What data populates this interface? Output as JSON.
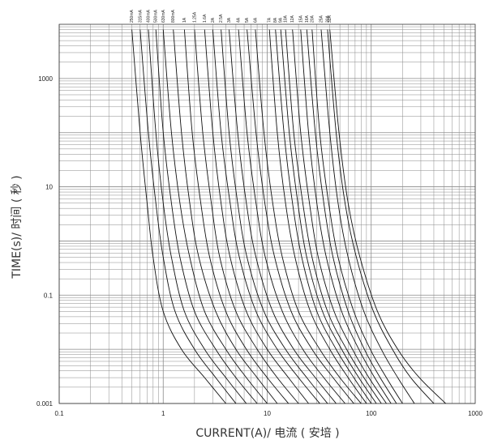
{
  "chart_data": {
    "type": "line",
    "title": "",
    "xlabel": "CURRENT(A)/ 电流 ( 安培 )",
    "ylabel": "TIME(s)/ 时间 ( 秒 )",
    "x_scale": "log",
    "y_scale": "log",
    "xlim": [
      0.1,
      1000
    ],
    "ylim": [
      0.001,
      10000
    ],
    "grid": true,
    "legend": "labels at top of curves",
    "x_tick_labels": [
      "0.1",
      "1",
      "10",
      "100",
      "1000"
    ],
    "y_tick_labels": [
      "0.001",
      "0.1",
      "10",
      "1000"
    ],
    "colors": {
      "line": "#111111",
      "grid": "#8a8a8a",
      "text": "#222222"
    },
    "series": [
      {
        "name": "250mA",
        "points": [
          [
            0.5,
            8000
          ],
          [
            0.6,
            100
          ],
          [
            0.7,
            5
          ],
          [
            0.8,
            0.5
          ],
          [
            1.0,
            0.05
          ],
          [
            1.5,
            0.01
          ],
          [
            2.5,
            0.003
          ],
          [
            4.0,
            0.001
          ]
        ]
      },
      {
        "name": "315mA",
        "points": [
          [
            0.6,
            8000
          ],
          [
            0.72,
            100
          ],
          [
            0.85,
            5
          ],
          [
            1.0,
            0.5
          ],
          [
            1.3,
            0.05
          ],
          [
            2.0,
            0.01
          ],
          [
            3.2,
            0.003
          ],
          [
            5.0,
            0.001
          ]
        ]
      },
      {
        "name": "400mA",
        "points": [
          [
            0.72,
            8000
          ],
          [
            0.85,
            100
          ],
          [
            1.0,
            5
          ],
          [
            1.2,
            0.5
          ],
          [
            1.6,
            0.05
          ],
          [
            2.5,
            0.01
          ],
          [
            4.0,
            0.003
          ],
          [
            6.3,
            0.001
          ]
        ]
      },
      {
        "name": "500mA",
        "points": [
          [
            0.85,
            8000
          ],
          [
            1.0,
            100
          ],
          [
            1.2,
            5
          ],
          [
            1.45,
            0.5
          ],
          [
            2.0,
            0.05
          ],
          [
            3.2,
            0.01
          ],
          [
            5.0,
            0.003
          ],
          [
            8.0,
            0.001
          ]
        ]
      },
      {
        "name": "630mA",
        "points": [
          [
            1.0,
            8000
          ],
          [
            1.2,
            100
          ],
          [
            1.45,
            5
          ],
          [
            1.8,
            0.5
          ],
          [
            2.5,
            0.05
          ],
          [
            4.0,
            0.01
          ],
          [
            6.3,
            0.003
          ],
          [
            10,
            0.001
          ]
        ]
      },
      {
        "name": "800mA",
        "points": [
          [
            1.25,
            8000
          ],
          [
            1.5,
            100
          ],
          [
            1.8,
            5
          ],
          [
            2.2,
            0.5
          ],
          [
            3.2,
            0.05
          ],
          [
            5.0,
            0.01
          ],
          [
            8.0,
            0.003
          ],
          [
            12.5,
            0.001
          ]
        ]
      },
      {
        "name": "1A",
        "points": [
          [
            1.6,
            8000
          ],
          [
            1.9,
            100
          ],
          [
            2.3,
            5
          ],
          [
            2.8,
            0.5
          ],
          [
            4.0,
            0.05
          ],
          [
            6.3,
            0.01
          ],
          [
            10,
            0.003
          ],
          [
            16,
            0.001
          ]
        ]
      },
      {
        "name": "1.25A",
        "points": [
          [
            2.0,
            8000
          ],
          [
            2.4,
            100
          ],
          [
            2.9,
            5
          ],
          [
            3.5,
            0.5
          ],
          [
            5.0,
            0.05
          ],
          [
            8.0,
            0.01
          ],
          [
            12.5,
            0.003
          ],
          [
            20,
            0.001
          ]
        ]
      },
      {
        "name": "1.6A",
        "points": [
          [
            2.5,
            8000
          ],
          [
            3.0,
            100
          ],
          [
            3.6,
            5
          ],
          [
            4.4,
            0.5
          ],
          [
            6.3,
            0.05
          ],
          [
            10,
            0.01
          ],
          [
            16,
            0.003
          ],
          [
            25,
            0.001
          ]
        ]
      },
      {
        "name": "2A",
        "points": [
          [
            3.0,
            8000
          ],
          [
            3.6,
            100
          ],
          [
            4.4,
            5
          ],
          [
            5.4,
            0.5
          ],
          [
            7.8,
            0.05
          ],
          [
            12.5,
            0.01
          ],
          [
            20,
            0.003
          ],
          [
            32,
            0.001
          ]
        ]
      },
      {
        "name": "2.5A",
        "points": [
          [
            3.6,
            8000
          ],
          [
            4.3,
            100
          ],
          [
            5.2,
            5
          ],
          [
            6.4,
            0.5
          ],
          [
            9.3,
            0.05
          ],
          [
            15,
            0.01
          ],
          [
            24,
            0.003
          ],
          [
            38,
            0.001
          ]
        ]
      },
      {
        "name": "3A",
        "points": [
          [
            4.3,
            8000
          ],
          [
            5.2,
            100
          ],
          [
            6.3,
            5
          ],
          [
            7.8,
            0.5
          ],
          [
            11.3,
            0.05
          ],
          [
            18,
            0.01
          ],
          [
            29,
            0.003
          ],
          [
            46,
            0.001
          ]
        ]
      },
      {
        "name": "4A",
        "points": [
          [
            5.3,
            8000
          ],
          [
            6.4,
            100
          ],
          [
            7.8,
            5
          ],
          [
            9.6,
            0.5
          ],
          [
            14,
            0.05
          ],
          [
            22,
            0.01
          ],
          [
            35,
            0.003
          ],
          [
            56,
            0.001
          ]
        ]
      },
      {
        "name": "5A",
        "points": [
          [
            6.4,
            8000
          ],
          [
            7.8,
            100
          ],
          [
            9.5,
            5
          ],
          [
            11.8,
            0.5
          ],
          [
            17,
            0.05
          ],
          [
            27,
            0.01
          ],
          [
            43,
            0.003
          ],
          [
            68,
            0.001
          ]
        ]
      },
      {
        "name": "6A",
        "points": [
          [
            7.7,
            8000
          ],
          [
            9.3,
            100
          ],
          [
            11.3,
            5
          ],
          [
            14,
            0.5
          ],
          [
            20,
            0.05
          ],
          [
            32,
            0.01
          ],
          [
            50,
            0.003
          ],
          [
            80,
            0.001
          ]
        ]
      },
      {
        "name": "7A",
        "points": [
          [
            10.5,
            8000
          ],
          [
            12.5,
            100
          ],
          [
            15,
            5
          ],
          [
            18.5,
            0.5
          ],
          [
            26,
            0.05
          ],
          [
            40,
            0.01
          ],
          [
            60,
            0.003
          ],
          [
            90,
            0.001
          ]
        ]
      },
      {
        "name": "8A",
        "points": [
          [
            12,
            8000
          ],
          [
            14.5,
            100
          ],
          [
            17.5,
            5
          ],
          [
            21.5,
            0.5
          ],
          [
            30,
            0.05
          ],
          [
            46,
            0.01
          ],
          [
            68,
            0.003
          ],
          [
            100,
            0.001
          ]
        ]
      },
      {
        "name": "9A",
        "points": [
          [
            13.5,
            8000
          ],
          [
            16.3,
            100
          ],
          [
            19.7,
            5
          ],
          [
            24,
            0.5
          ],
          [
            34,
            0.05
          ],
          [
            52,
            0.01
          ],
          [
            76,
            0.003
          ],
          [
            112,
            0.001
          ]
        ]
      },
      {
        "name": "10A",
        "points": [
          [
            15,
            8000
          ],
          [
            18,
            100
          ],
          [
            22,
            5
          ],
          [
            27,
            0.5
          ],
          [
            38,
            0.05
          ],
          [
            58,
            0.01
          ],
          [
            85,
            0.003
          ],
          [
            125,
            0.001
          ]
        ]
      },
      {
        "name": "12A",
        "points": [
          [
            17.5,
            8000
          ],
          [
            21,
            100
          ],
          [
            25.5,
            5
          ],
          [
            31,
            0.5
          ],
          [
            44,
            0.05
          ],
          [
            66,
            0.01
          ],
          [
            95,
            0.003
          ],
          [
            140,
            0.001
          ]
        ]
      },
      {
        "name": "15A",
        "points": [
          [
            21,
            8000
          ],
          [
            25,
            100
          ],
          [
            30,
            5
          ],
          [
            37,
            0.5
          ],
          [
            52,
            0.05
          ],
          [
            76,
            0.01
          ],
          [
            108,
            0.003
          ],
          [
            155,
            0.001
          ]
        ]
      },
      {
        "name": "16A",
        "points": [
          [
            24,
            8000
          ],
          [
            29,
            100
          ],
          [
            35,
            5
          ],
          [
            43,
            0.5
          ],
          [
            60,
            0.05
          ],
          [
            86,
            0.01
          ],
          [
            122,
            0.003
          ],
          [
            175,
            0.001
          ]
        ]
      },
      {
        "name": "20A",
        "points": [
          [
            27,
            8000
          ],
          [
            32,
            100
          ],
          [
            39,
            5
          ],
          [
            48,
            0.5
          ],
          [
            68,
            0.05
          ],
          [
            98,
            0.01
          ],
          [
            140,
            0.003
          ],
          [
            200,
            0.001
          ]
        ]
      },
      {
        "name": "25A",
        "points": [
          [
            33,
            8000
          ],
          [
            40,
            100
          ],
          [
            48,
            5
          ],
          [
            60,
            0.5
          ],
          [
            85,
            0.05
          ],
          [
            125,
            0.01
          ],
          [
            180,
            0.003
          ],
          [
            260,
            0.001
          ]
        ]
      },
      {
        "name": "30A",
        "points": [
          [
            38,
            8000
          ],
          [
            46,
            100
          ],
          [
            56,
            5
          ],
          [
            72,
            0.5
          ],
          [
            105,
            0.05
          ],
          [
            160,
            0.01
          ],
          [
            240,
            0.003
          ],
          [
            400,
            0.001
          ]
        ]
      },
      {
        "name": "32A",
        "points": [
          [
            40,
            8000
          ],
          [
            49,
            100
          ],
          [
            60,
            5
          ],
          [
            78,
            0.5
          ],
          [
            115,
            0.05
          ],
          [
            180,
            0.01
          ],
          [
            290,
            0.003
          ],
          [
            520,
            0.001
          ]
        ]
      }
    ]
  }
}
